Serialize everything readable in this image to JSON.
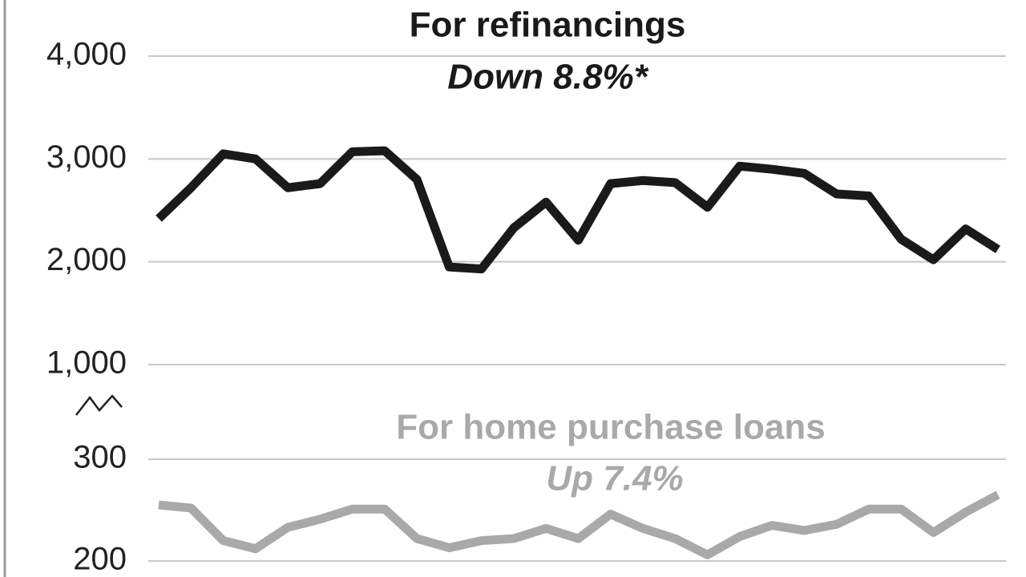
{
  "chart_data": [
    {
      "type": "line",
      "title": "For refinancings",
      "subtitle": "Down 8.8%*",
      "categories": [
        null,
        null,
        null,
        null,
        null,
        null,
        null,
        null,
        null,
        null,
        null,
        null,
        null,
        null,
        null,
        null,
        null,
        null,
        null,
        null,
        null,
        null,
        null,
        null,
        null,
        null,
        null
      ],
      "values": [
        2420,
        2720,
        3050,
        3000,
        2720,
        2760,
        3070,
        3080,
        2800,
        1950,
        1930,
        2330,
        2580,
        2210,
        2760,
        2790,
        2770,
        2530,
        2930,
        2900,
        2860,
        2660,
        2640,
        2220,
        2020,
        2320,
        2120
      ],
      "color": "#1a1a1a",
      "ylim": [
        1000,
        4000
      ],
      "yticks": [
        {
          "value": 1000,
          "label": "1,000"
        },
        {
          "value": 2000,
          "label": "2,000"
        },
        {
          "value": 3000,
          "label": "3,000"
        },
        {
          "value": 4000,
          "label": "4,000"
        }
      ],
      "grid": true
    },
    {
      "type": "line",
      "title": "For home purchase loans",
      "subtitle": "Up 7.4%",
      "categories": [
        null,
        null,
        null,
        null,
        null,
        null,
        null,
        null,
        null,
        null,
        null,
        null,
        null,
        null,
        null,
        null,
        null,
        null,
        null,
        null,
        null,
        null,
        null,
        null,
        null,
        null,
        null
      ],
      "values": [
        255,
        252,
        220,
        212,
        233,
        241,
        251,
        251,
        222,
        213,
        220,
        222,
        232,
        222,
        246,
        232,
        222,
        206,
        224,
        235,
        230,
        236,
        251,
        251,
        228,
        248,
        265
      ],
      "color": "#a9a9a9",
      "ylim": [
        200,
        300
      ],
      "yticks": [
        200,
        300
      ],
      "grid": true
    }
  ]
}
